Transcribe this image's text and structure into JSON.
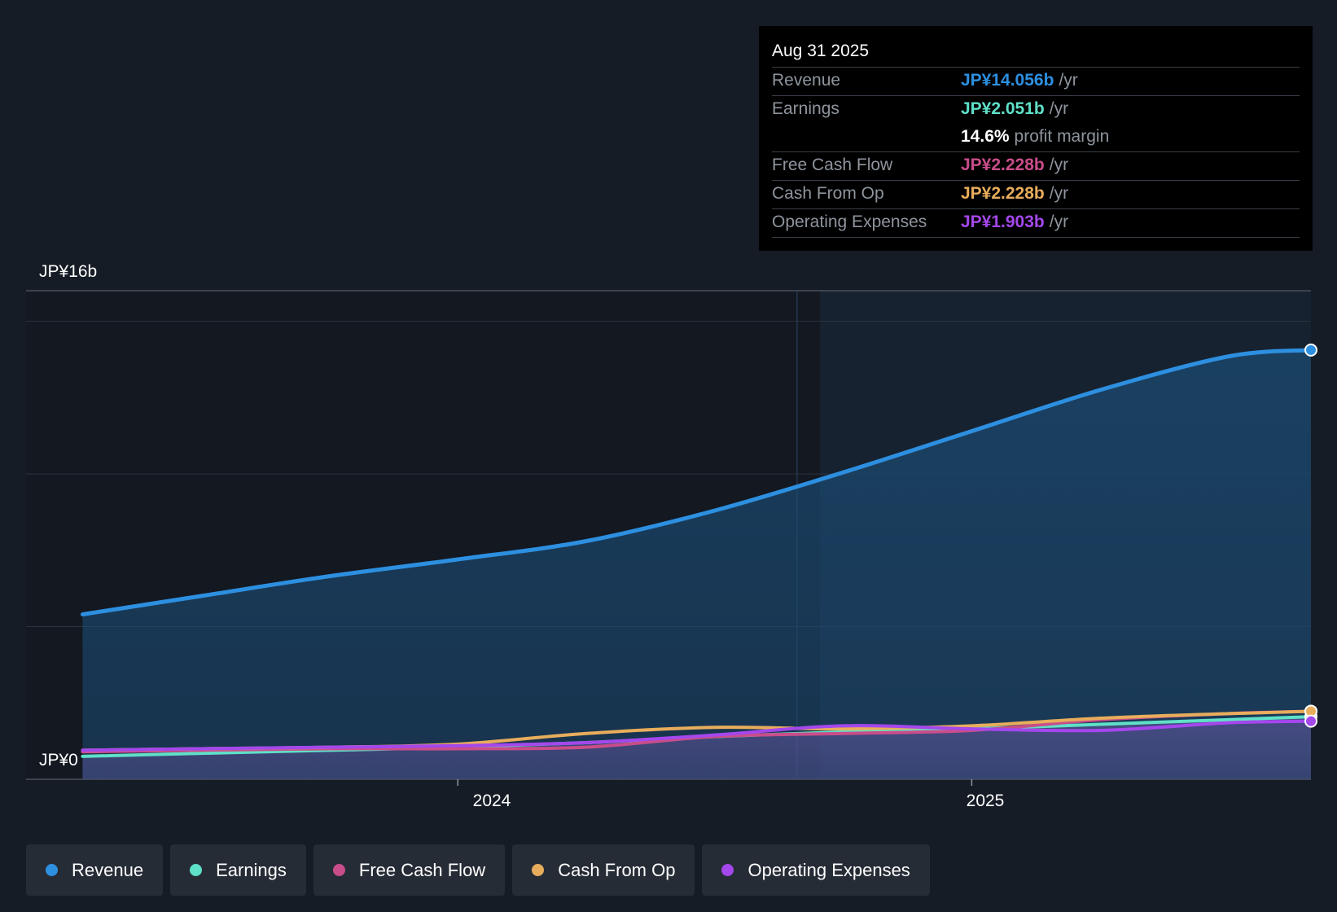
{
  "chart_data": {
    "type": "line",
    "y_axis": {
      "top_label": "JP¥16b",
      "bottom_label": "JP¥0",
      "ylim": [
        0,
        16
      ]
    },
    "x_axis": {
      "tick_labels": [
        "2024",
        "2025"
      ],
      "ticks": [
        2024.0,
        2025.0
      ],
      "xlim": [
        2023.16,
        2025.66
      ]
    },
    "forecast_boundary": 2024.66,
    "x": [
      2023.27,
      2023.5,
      2023.75,
      2024.0,
      2024.25,
      2024.5,
      2024.75,
      2025.0,
      2025.25,
      2025.5,
      2025.66
    ],
    "series": [
      {
        "name": "Revenue",
        "color": "#2d8fe0",
        "fill": true,
        "values": [
          5.4,
          6.0,
          6.65,
          7.2,
          7.8,
          8.8,
          10.05,
          11.4,
          12.75,
          13.85,
          14.056
        ]
      },
      {
        "name": "Earnings",
        "color": "#5fe0c8",
        "values": [
          0.75,
          0.85,
          0.95,
          1.05,
          1.2,
          1.4,
          1.55,
          1.65,
          1.8,
          1.95,
          2.051
        ]
      },
      {
        "name": "Free Cash Flow",
        "color": "#c94d8a",
        "values": [
          0.9,
          0.95,
          1.0,
          1.0,
          1.05,
          1.4,
          1.5,
          1.6,
          1.95,
          2.15,
          2.228
        ]
      },
      {
        "name": "Cash From Op",
        "color": "#e8ad5c",
        "values": [
          0.95,
          1.0,
          1.05,
          1.15,
          1.5,
          1.7,
          1.65,
          1.75,
          2.0,
          2.15,
          2.228
        ]
      },
      {
        "name": "Operating Expenses",
        "color": "#a447ec",
        "values": [
          0.95,
          1.0,
          1.05,
          1.1,
          1.2,
          1.45,
          1.75,
          1.65,
          1.6,
          1.85,
          1.903
        ]
      }
    ]
  },
  "tooltip": {
    "date": "Aug 31 2025",
    "rows": [
      {
        "label": "Revenue",
        "value": "JP¥14.056b",
        "unit": "/yr",
        "color": "#2d8fe0"
      },
      {
        "label": "Earnings",
        "value": "JP¥2.051b",
        "unit": "/yr",
        "color": "#5fe0c8"
      },
      {
        "label": "Free Cash Flow",
        "value": "JP¥2.228b",
        "unit": "/yr",
        "color": "#c94d8a"
      },
      {
        "label": "Cash From Op",
        "value": "JP¥2.228b",
        "unit": "/yr",
        "color": "#e8ad5c"
      },
      {
        "label": "Operating Expenses",
        "value": "JP¥1.903b",
        "unit": "/yr",
        "color": "#a447ec"
      }
    ],
    "margin_value": "14.6%",
    "margin_label": "profit margin"
  },
  "legend": [
    {
      "label": "Revenue",
      "color": "#2d8fe0"
    },
    {
      "label": "Earnings",
      "color": "#5fe0c8"
    },
    {
      "label": "Free Cash Flow",
      "color": "#c94d8a"
    },
    {
      "label": "Cash From Op",
      "color": "#e8ad5c"
    },
    {
      "label": "Operating Expenses",
      "color": "#a447ec"
    }
  ]
}
